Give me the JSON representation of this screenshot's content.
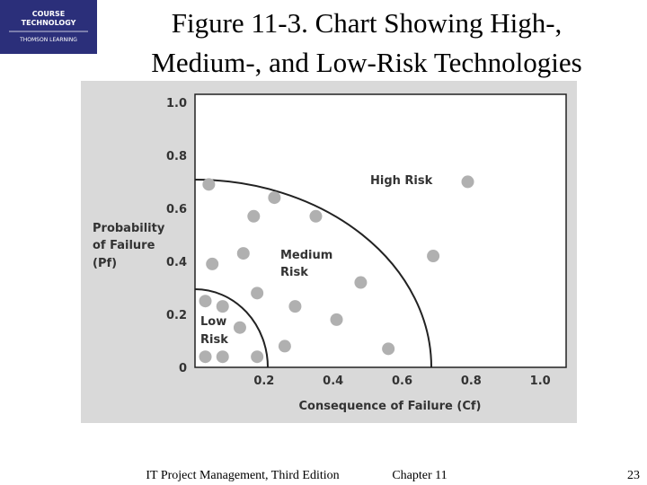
{
  "logo": [
    "COURSE",
    "TECHNOLOGY",
    "THOMSON LEARNING"
  ],
  "title": [
    "Figure 11-3. Chart Showing High-,",
    "Medium-, and Low-Risk Technologies"
  ],
  "footer": {
    "book": "IT Project Management, Third Edition",
    "chapter": "Chapter 11",
    "page": "23"
  },
  "chart_data": {
    "type": "scatter",
    "color": "#b0b0b0",
    "xlabel": "Consequence of Failure (Cf)",
    "ylabel": [
      "Probability",
      "of Failure",
      "(Pf)"
    ],
    "annotations": [
      "High Risk",
      "Medium",
      "Risk",
      "Low",
      "Risk"
    ],
    "xlim": [
      0,
      1.075
    ],
    "ylim": [
      0,
      1.03
    ],
    "xticks": [
      0.2,
      0.4,
      0.6,
      0.8,
      {
        "value": 1,
        "label": "1.0"
      }
    ],
    "yticks": [
      0,
      0.2,
      0.4,
      0.6,
      0.8,
      {
        "value": 1,
        "label": "1.0"
      }
    ],
    "x": [
      0.04,
      0.23,
      0.17,
      0.35,
      0.79,
      0.14,
      0.05,
      0.69,
      0.48,
      0.18,
      0.03,
      0.08,
      0.29,
      0.41,
      0.13,
      0.26,
      0.56,
      0.03,
      0.08,
      0.18
    ],
    "y": [
      0.69,
      0.64,
      0.57,
      0.57,
      0.7,
      0.43,
      0.39,
      0.42,
      0.32,
      0.28,
      0.25,
      0.23,
      0.23,
      0.18,
      0.15,
      0.08,
      0.07,
      0.04,
      0.04,
      0.04
    ]
  }
}
